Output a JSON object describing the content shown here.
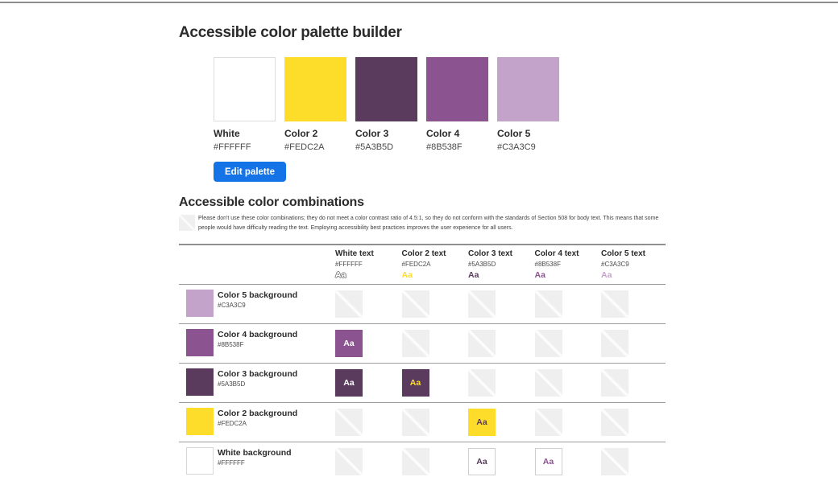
{
  "page": {
    "title": "Accessible color palette builder"
  },
  "palette": {
    "edit_button_label": "Edit palette",
    "swatches": [
      {
        "name": "White",
        "hex": "#FFFFFF"
      },
      {
        "name": "Color 2",
        "hex": "#FEDC2A"
      },
      {
        "name": "Color 3",
        "hex": "#5A3B5D"
      },
      {
        "name": "Color 4",
        "hex": "#8B538F"
      },
      {
        "name": "Color 5",
        "hex": "#C3A3C9"
      }
    ]
  },
  "combinations": {
    "title": "Accessible color combinations",
    "note": "Please don't use these color combinations; they do not meet a color contrast ratio of 4.5:1, so they do not conform with the standards of Section 508 for body text. This means that some people would have difficulty reading the text. Employing accessibility best practices improves the user experience for all users.",
    "sample_label": "Aa",
    "columns": [
      {
        "label": "White text",
        "hex": "#FFFFFF"
      },
      {
        "label": "Color 2 text",
        "hex": "#FEDC2A"
      },
      {
        "label": "Color 3 text",
        "hex": "#5A3B5D"
      },
      {
        "label": "Color 4 text",
        "hex": "#8B538F"
      },
      {
        "label": "Color 5 text",
        "hex": "#C3A3C9"
      }
    ],
    "rows": [
      {
        "label": "Color 5 background",
        "hex": "#C3A3C9",
        "cells": [
          "fail",
          "fail",
          "fail",
          "fail",
          "fail"
        ]
      },
      {
        "label": "Color 4 background",
        "hex": "#8B538F",
        "cells": [
          "pass",
          "fail",
          "fail",
          "fail",
          "fail"
        ]
      },
      {
        "label": "Color 3 background",
        "hex": "#5A3B5D",
        "cells": [
          "pass",
          "pass",
          "fail",
          "fail",
          "fail"
        ]
      },
      {
        "label": "Color 2 background",
        "hex": "#FEDC2A",
        "cells": [
          "fail",
          "fail",
          "pass",
          "fail",
          "fail"
        ]
      },
      {
        "label": "White background",
        "hex": "#FFFFFF",
        "cells": [
          "fail",
          "fail",
          "pass",
          "pass",
          "fail"
        ]
      }
    ]
  },
  "colors": {
    "accent_blue": "#1473E6",
    "fail_placeholder_gray": "#EFEFEF",
    "border_gray": "#9A9A9A"
  }
}
